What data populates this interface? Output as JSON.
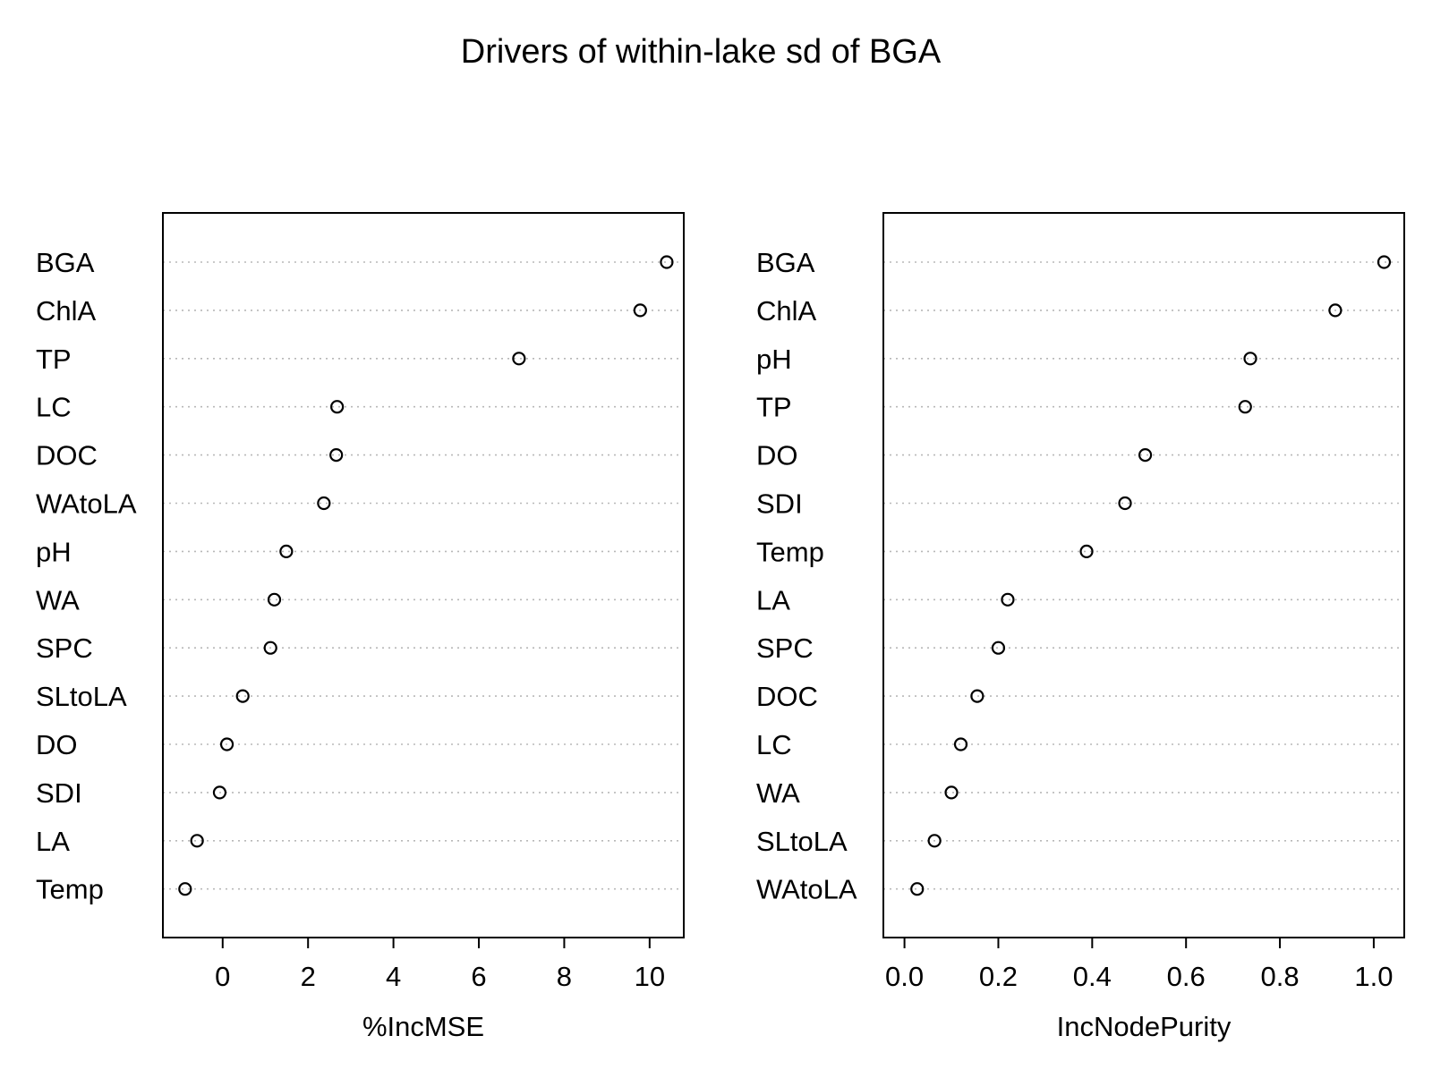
{
  "title": "Drivers of within-lake sd of BGA",
  "chart_data": [
    {
      "type": "scatter",
      "subtype": "dotchart",
      "xlabel": "%IncMSE",
      "xlim": [
        -1.4,
        10.8
      ],
      "xticks": [
        0,
        2,
        4,
        6,
        8,
        10
      ],
      "xtick_labels": [
        "0",
        "2",
        "4",
        "6",
        "8",
        "10"
      ],
      "grid": "dotted-horizontal",
      "categories": [
        "BGA",
        "ChlA",
        "TP",
        "LC",
        "DOC",
        "WAtoLA",
        "pH",
        "WA",
        "SPC",
        "SLtoLA",
        "DO",
        "SDI",
        "LA",
        "Temp"
      ],
      "values": [
        10.4,
        9.78,
        6.94,
        2.68,
        2.66,
        2.37,
        1.49,
        1.21,
        1.12,
        0.47,
        0.1,
        -0.07,
        -0.6,
        -0.88
      ]
    },
    {
      "type": "scatter",
      "subtype": "dotchart",
      "xlabel": "IncNodePurity",
      "xlim": [
        -0.045,
        1.065
      ],
      "xticks": [
        0.0,
        0.2,
        0.4,
        0.6,
        0.8,
        1.0
      ],
      "xtick_labels": [
        "0.0",
        "0.2",
        "0.4",
        "0.6",
        "0.8",
        "1.0"
      ],
      "grid": "dotted-horizontal",
      "categories": [
        "BGA",
        "ChlA",
        "pH",
        "TP",
        "DO",
        "SDI",
        "Temp",
        "LA",
        "SPC",
        "DOC",
        "LC",
        "WA",
        "SLtoLA",
        "WAtoLA"
      ],
      "values": [
        1.022,
        0.918,
        0.737,
        0.726,
        0.513,
        0.47,
        0.388,
        0.22,
        0.2,
        0.155,
        0.12,
        0.1,
        0.064,
        0.027
      ]
    }
  ]
}
